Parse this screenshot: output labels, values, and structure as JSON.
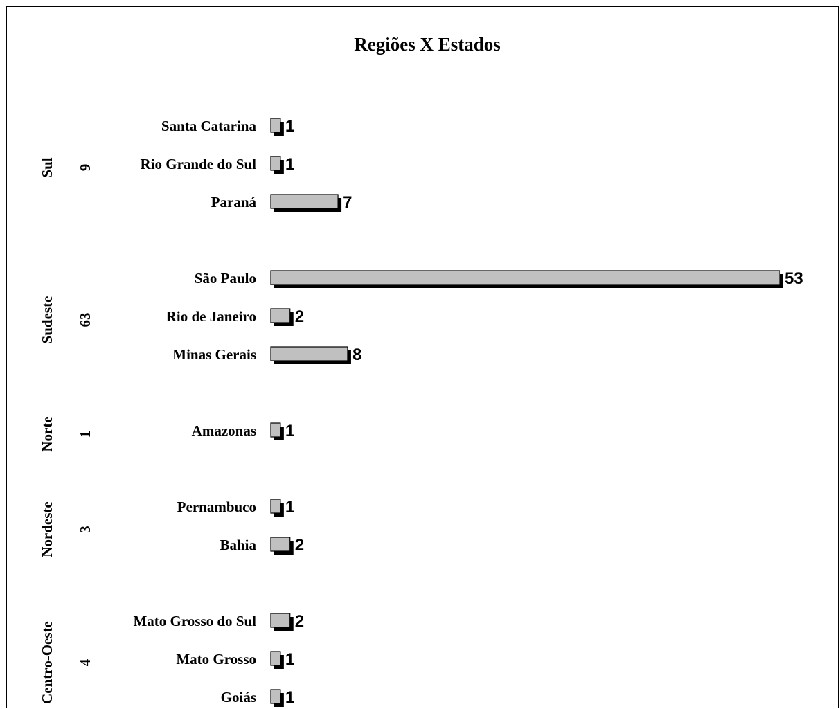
{
  "chart_data": {
    "type": "bar",
    "orientation": "horizontal",
    "title": "Regiões X Estados",
    "xlabel": "",
    "ylabel": "",
    "xlim": [
      0,
      53
    ],
    "grid": false,
    "legend": "none",
    "bar_color": "#c0c0c0",
    "shadow_color": "#000000",
    "groups": [
      {
        "region": "Sul",
        "total": "9",
        "categories": [
          "Santa Catarina",
          "Rio Grande do Sul",
          "Paraná"
        ],
        "values": [
          1,
          1,
          7
        ]
      },
      {
        "region": "Sudeste",
        "total": "63",
        "categories": [
          "São Paulo",
          "Rio de Janeiro",
          "Minas Gerais"
        ],
        "values": [
          53,
          2,
          8
        ]
      },
      {
        "region": "Norte",
        "total": "1",
        "categories": [
          "Amazonas"
        ],
        "values": [
          1
        ]
      },
      {
        "region": "Nordeste",
        "total": "3",
        "categories": [
          "Pernambuco",
          "Bahia"
        ],
        "values": [
          1,
          2
        ]
      },
      {
        "region": "Centro-Oeste",
        "total": "4",
        "categories": [
          "Mato Grosso do Sul",
          "Mato Grosso",
          "Goiás"
        ],
        "values": [
          2,
          1,
          1
        ]
      }
    ]
  }
}
